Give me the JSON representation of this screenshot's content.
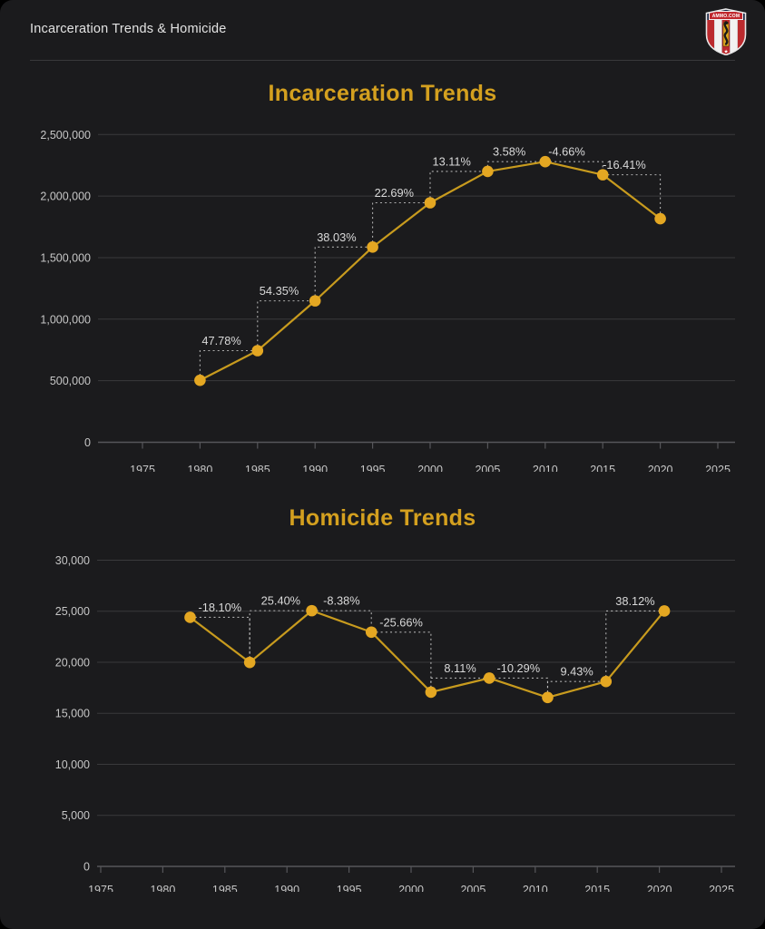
{
  "header": {
    "title": "Incarceration Trends & Homicide"
  },
  "logo": {
    "banner_text": "AMMO.COM"
  },
  "theme": {
    "background": "#1b1b1d",
    "title_gold": "#d4a01f",
    "line_gold": "#c89b1e",
    "point_gold": "#e4a722",
    "grid": "#3a3a3c",
    "axis": "#56565a",
    "tick_text": "#c6c6c6",
    "pct_text": "#d9d9d9",
    "dashed": "#c8c8c8",
    "logo_red": "#bb2a2e",
    "logo_navy": "#15213f"
  },
  "chart_data": [
    {
      "type": "line",
      "title": "Incarceration Trends",
      "x": [
        1980,
        1985,
        1990,
        1995,
        2000,
        2005,
        2010,
        2015,
        2020
      ],
      "values": [
        503586,
        744208,
        1148702,
        1585586,
        1945400,
        2200400,
        2279200,
        2172900,
        1816300
      ],
      "pct_change_labels": [
        "47.78%",
        "54.35%",
        "38.03%",
        "22.69%",
        "13.11%",
        "3.58%",
        "-4.66%",
        "-16.41%"
      ],
      "x_ticks": [
        1975,
        1980,
        1985,
        1990,
        1995,
        2000,
        2005,
        2010,
        2015,
        2020,
        2025
      ],
      "y_ticks": [
        {
          "value": 2500000,
          "label": "2,500,000"
        },
        {
          "value": 2000000,
          "label": "2,000,000"
        },
        {
          "value": 1500000,
          "label": "1,500,000"
        },
        {
          "value": 1000000,
          "label": "1,000,000"
        },
        {
          "value": 500000,
          "label": "500,000"
        },
        {
          "value": 0,
          "label": "0"
        }
      ],
      "xlim": [
        1975,
        2025
      ],
      "ylim": [
        0,
        2500000
      ],
      "grid": true,
      "legend": false
    },
    {
      "type": "line",
      "title": "Homicide Trends",
      "x": [
        1982.2,
        1987,
        1992,
        1996.8,
        2001.6,
        2006.3,
        2011,
        2015.7,
        2020.4
      ],
      "values": [
        24400,
        19980,
        25050,
        22950,
        17070,
        18450,
        16550,
        18110,
        25020
      ],
      "pct_change_labels": [
        "-18.10%",
        "25.40%",
        "-8.38%",
        "-25.66%",
        "8.11%",
        "-10.29%",
        "9.43%",
        "38.12%"
      ],
      "x_ticks": [
        1975,
        1980,
        1985,
        1990,
        1995,
        2000,
        2005,
        2010,
        2015,
        2020,
        2025
      ],
      "y_ticks": [
        {
          "value": 30000,
          "label": "30,000"
        },
        {
          "value": 25000,
          "label": "25,000"
        },
        {
          "value": 20000,
          "label": "20,000"
        },
        {
          "value": 15000,
          "label": "15,000"
        },
        {
          "value": 10000,
          "label": "10,000"
        },
        {
          "value": 5000,
          "label": "5,000"
        },
        {
          "value": 0,
          "label": "0"
        }
      ],
      "xlim": [
        1975,
        2025
      ],
      "ylim": [
        0,
        30000
      ],
      "grid": true,
      "legend": false
    }
  ]
}
